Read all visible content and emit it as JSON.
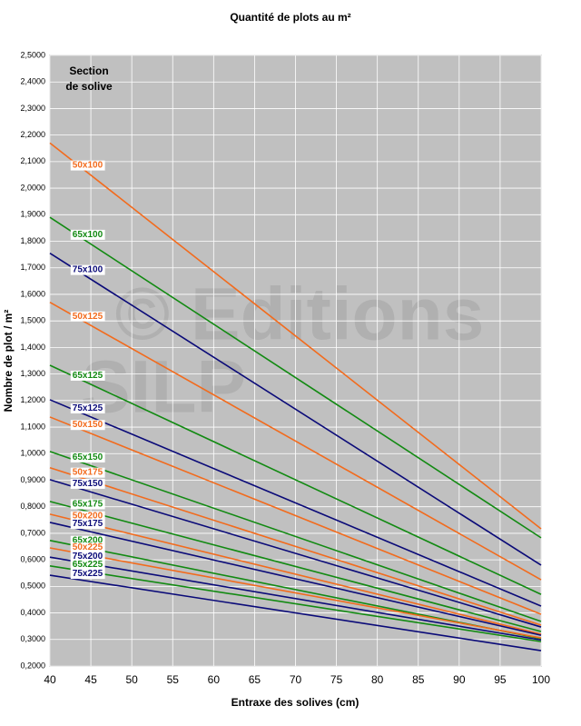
{
  "chart_data": {
    "type": "line",
    "title": "Quantité de plots au m²",
    "x_label": "Entraxe des solives (cm)",
    "y_label": "Nombre de plot / m²",
    "annotation": [
      "Section",
      "de solive"
    ],
    "watermark": [
      "© Editions",
      "SILP"
    ],
    "grid": true,
    "x": [
      40,
      100
    ],
    "xlim": [
      40,
      100
    ],
    "xticks": [
      40,
      45,
      50,
      55,
      60,
      65,
      70,
      75,
      80,
      85,
      90,
      95,
      100
    ],
    "ylim": [
      0.2,
      2.5
    ],
    "yticks": [
      {
        "value": 0.2,
        "label": "0,2000"
      },
      {
        "value": 0.3,
        "label": "0,3000"
      },
      {
        "value": 0.4,
        "label": "0,4000"
      },
      {
        "value": 0.5,
        "label": "0,5000"
      },
      {
        "value": 0.6,
        "label": "0,6000"
      },
      {
        "value": 0.7,
        "label": "0,7000"
      },
      {
        "value": 0.8,
        "label": "0,8000"
      },
      {
        "value": 0.9,
        "label": "0,9000"
      },
      {
        "value": 1.0,
        "label": "1,0000"
      },
      {
        "value": 1.1,
        "label": "1,1000"
      },
      {
        "value": 1.2,
        "label": "1,2000"
      },
      {
        "value": 1.3,
        "label": "1,3000"
      },
      {
        "value": 1.4,
        "label": "1,4000"
      },
      {
        "value": 1.5,
        "label": "1,5000"
      },
      {
        "value": 1.6,
        "label": "1,6000"
      },
      {
        "value": 1.7,
        "label": "1,7000"
      },
      {
        "value": 1.8,
        "label": "1,8000"
      },
      {
        "value": 1.9,
        "label": "1,9000"
      },
      {
        "value": 2.0,
        "label": "2,0000"
      },
      {
        "value": 2.1,
        "label": "2,1000"
      },
      {
        "value": 2.2,
        "label": "2,2000"
      },
      {
        "value": 2.3,
        "label": "2,3000"
      },
      {
        "value": 2.4,
        "label": "2,4000"
      },
      {
        "value": 2.5,
        "label": "2,5000"
      }
    ],
    "series": [
      {
        "name": "50x100",
        "color": "#f26b1d",
        "values": [
          2.17,
          0.717
        ]
      },
      {
        "name": "65x100",
        "color": "#128a12",
        "values": [
          1.89,
          0.683
        ]
      },
      {
        "name": "75x100",
        "color": "#0a0a78",
        "values": [
          1.755,
          0.58
        ]
      },
      {
        "name": "50x125",
        "color": "#f26b1d",
        "values": [
          1.57,
          0.525
        ]
      },
      {
        "name": "65x125",
        "color": "#128a12",
        "values": [
          1.333,
          0.47
        ]
      },
      {
        "name": "75x125",
        "color": "#0a0a78",
        "values": [
          1.203,
          0.426
        ]
      },
      {
        "name": "50x150",
        "color": "#f26b1d",
        "values": [
          1.138,
          0.395
        ]
      },
      {
        "name": "65x150",
        "color": "#128a12",
        "values": [
          1.008,
          0.368
        ]
      },
      {
        "name": "50x175",
        "color": "#f26b1d",
        "values": [
          0.947,
          0.354
        ]
      },
      {
        "name": "75x150",
        "color": "#0a0a78",
        "values": [
          0.902,
          0.347
        ]
      },
      {
        "name": "65x175",
        "color": "#128a12",
        "values": [
          0.82,
          0.33
        ]
      },
      {
        "name": "50x200",
        "color": "#f26b1d",
        "values": [
          0.772,
          0.32
        ]
      },
      {
        "name": "75x175",
        "color": "#0a0a78",
        "values": [
          0.741,
          0.316
        ]
      },
      {
        "name": "65x200",
        "color": "#128a12",
        "values": [
          0.673,
          0.303
        ]
      },
      {
        "name": "50x225",
        "color": "#f26b1d",
        "values": [
          0.645,
          0.306
        ]
      },
      {
        "name": "75x200",
        "color": "#0a0a78",
        "values": [
          0.61,
          0.298
        ]
      },
      {
        "name": "65x225",
        "color": "#128a12",
        "values": [
          0.577,
          0.292
        ]
      },
      {
        "name": "75x225",
        "color": "#0a0a78",
        "values": [
          0.542,
          0.258
        ]
      }
    ]
  }
}
